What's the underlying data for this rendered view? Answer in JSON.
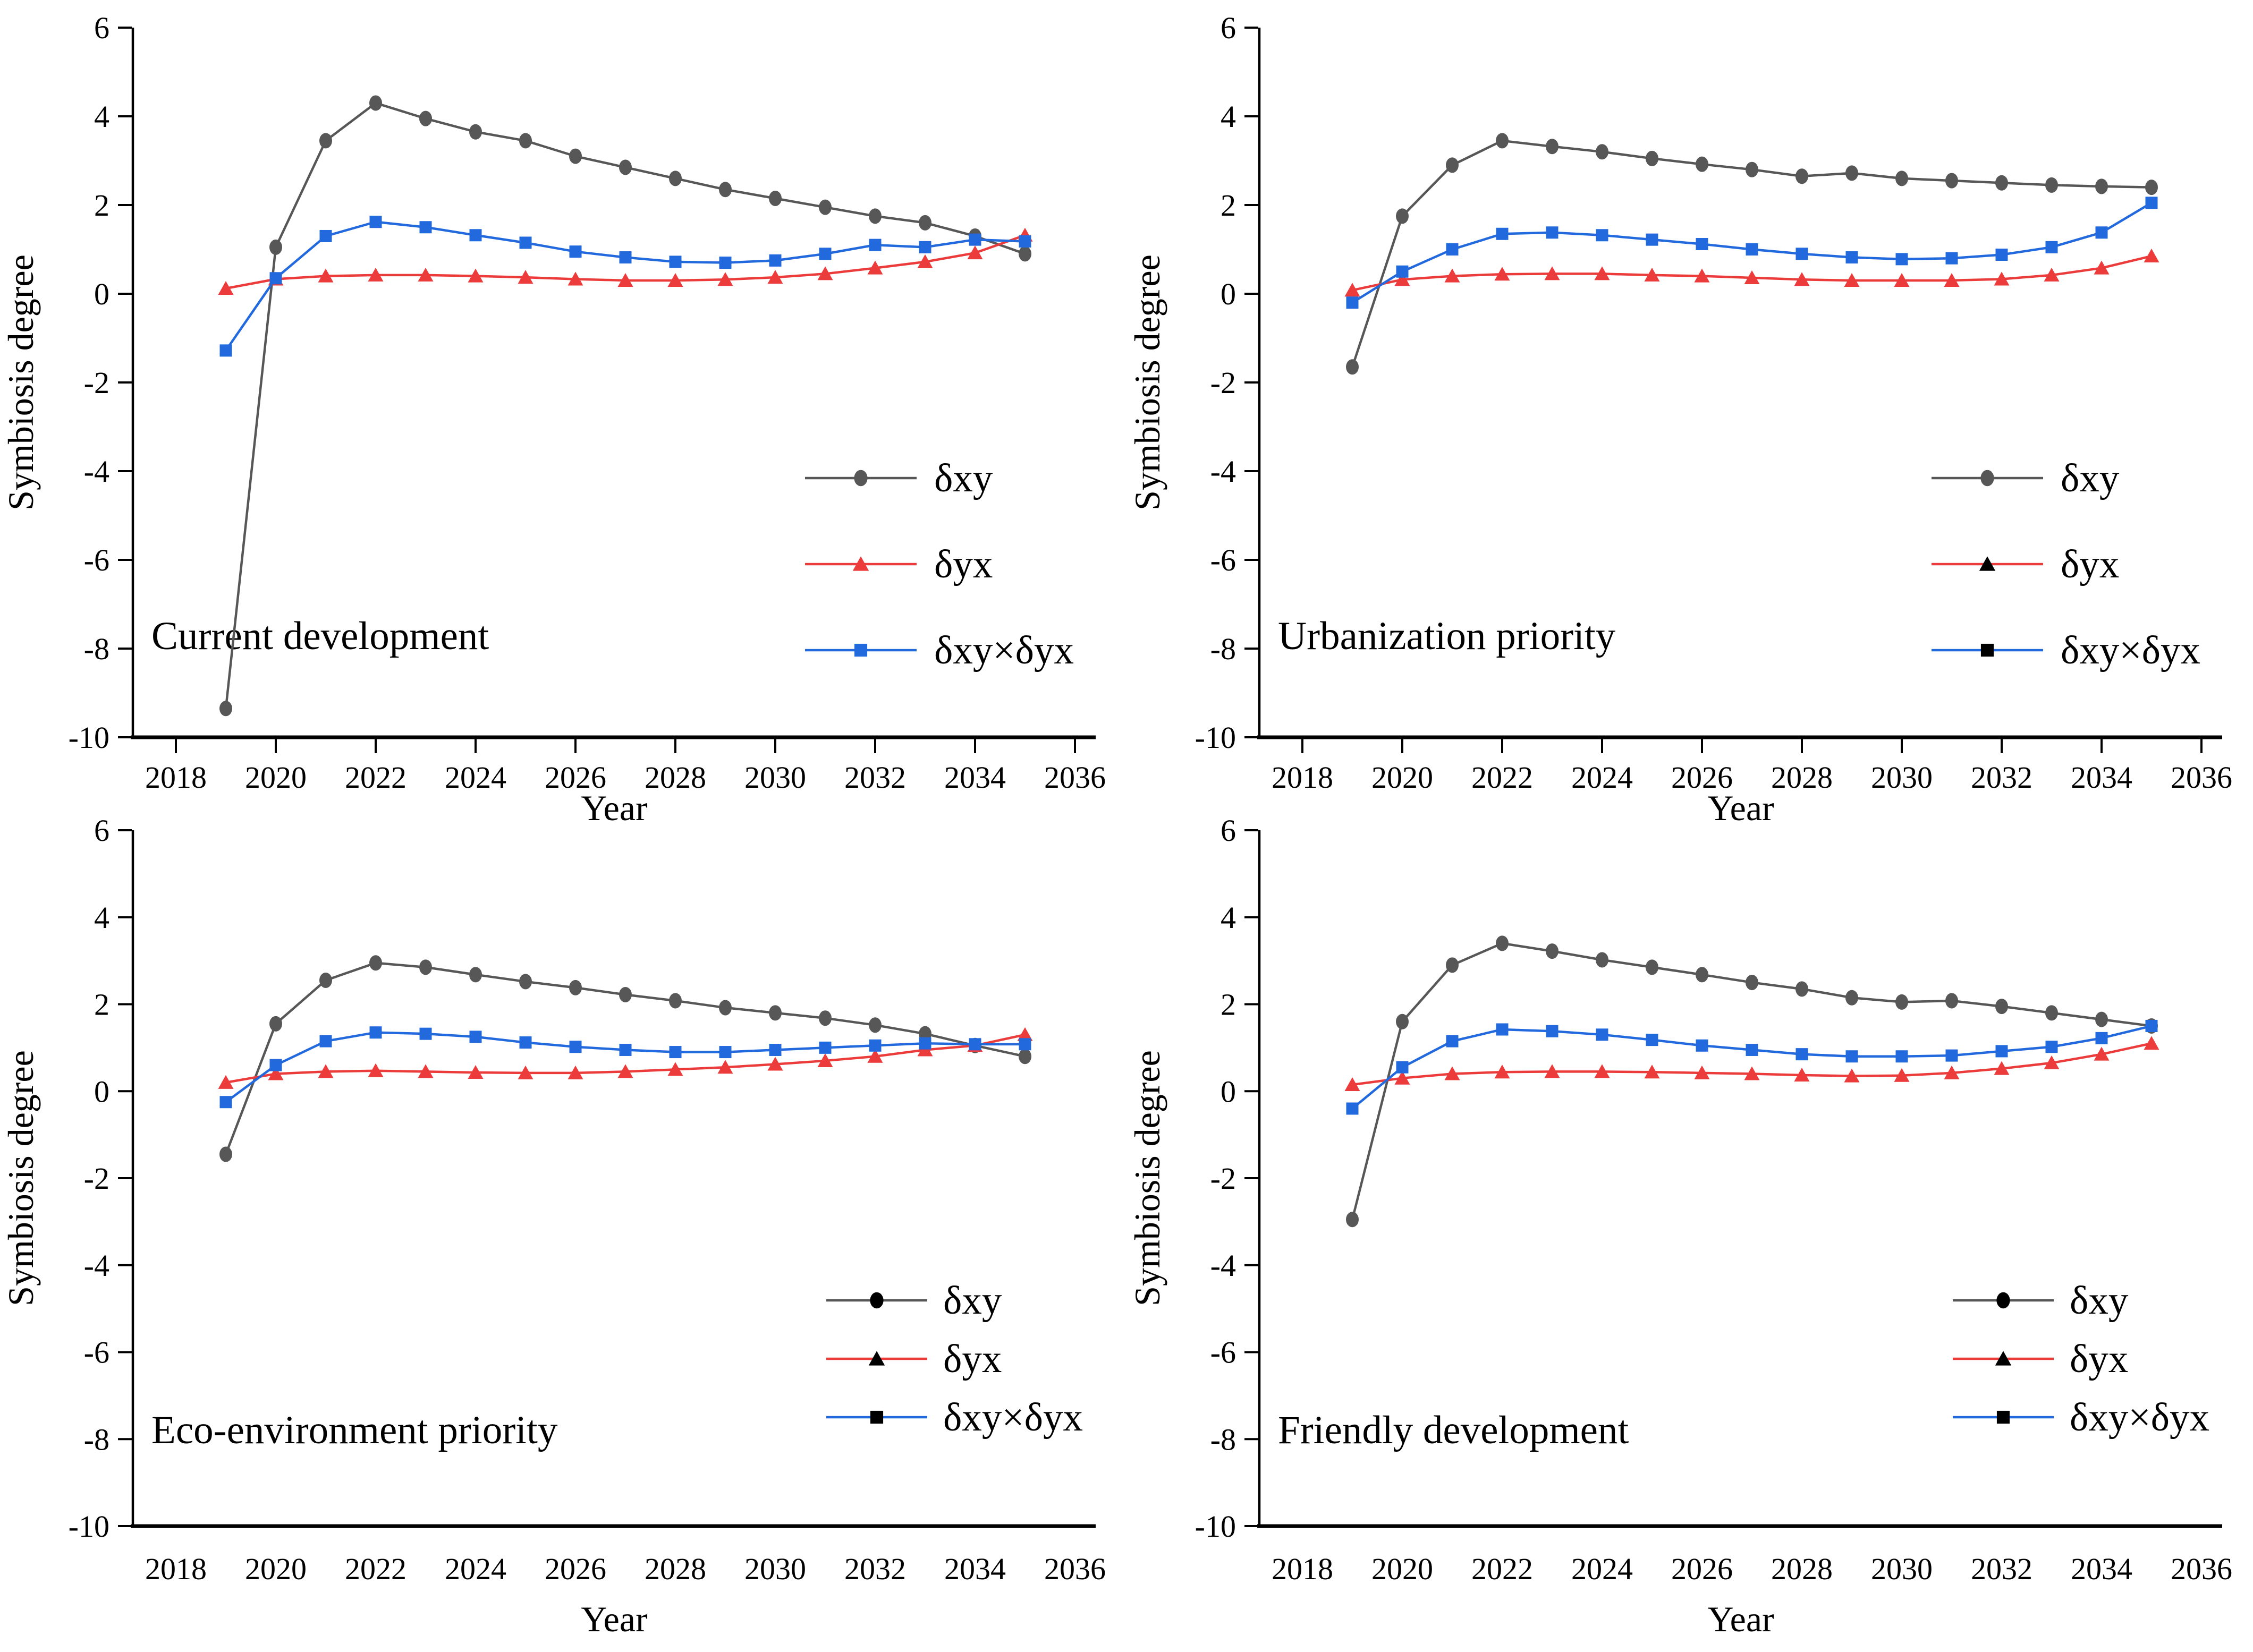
{
  "figure": {
    "background": "#ffffff",
    "x_axis_label": "Year",
    "y_axis_label": "Symbiosis degree"
  },
  "colors": {
    "gray": "#575757",
    "red": "#EC3B3B",
    "blue": "#2269DE",
    "black": "#000000",
    "axis": "#000000"
  },
  "chart_data": [
    {
      "slug": "current-development",
      "type": "line",
      "title": "Current development",
      "xlabel": "Year",
      "ylabel": "Symbiosis degree",
      "xlim": [
        2017.1,
        2036.4
      ],
      "ylim": [
        -10,
        6
      ],
      "grid": false,
      "legend_position": "inside-right-middle",
      "xticks": [
        2018,
        2020,
        2022,
        2024,
        2026,
        2028,
        2030,
        2032,
        2034,
        2036
      ],
      "yticks": [
        6,
        4,
        2,
        0,
        -2,
        -4,
        -6,
        -8,
        -10
      ],
      "x": [
        2019,
        2020,
        2021,
        2022,
        2023,
        2024,
        2025,
        2026,
        2027,
        2028,
        2029,
        2030,
        2031,
        2032,
        2033,
        2034,
        2035
      ],
      "series": [
        {
          "slug": "dxy",
          "name": "δxy",
          "marker": "circle",
          "line_color": "gray",
          "marker_color": "gray",
          "legend_marker_color": "gray",
          "values": [
            -9.35,
            1.05,
            3.45,
            4.3,
            3.95,
            3.65,
            3.45,
            3.1,
            2.85,
            2.6,
            2.35,
            2.15,
            1.95,
            1.75,
            1.6,
            1.3,
            0.9
          ]
        },
        {
          "slug": "dyx",
          "name": "δyx",
          "marker": "triangle",
          "line_color": "red",
          "marker_color": "red",
          "legend_marker_color": "red",
          "values": [
            0.12,
            0.33,
            0.4,
            0.42,
            0.42,
            0.4,
            0.37,
            0.33,
            0.3,
            0.3,
            0.32,
            0.37,
            0.45,
            0.58,
            0.72,
            0.92,
            1.32
          ]
        },
        {
          "slug": "dxydyx",
          "name": "δxy×δyx",
          "marker": "square",
          "line_color": "blue",
          "marker_color": "blue",
          "legend_marker_color": "blue",
          "values": [
            -1.28,
            0.35,
            1.3,
            1.62,
            1.5,
            1.32,
            1.15,
            0.95,
            0.82,
            0.72,
            0.7,
            0.75,
            0.9,
            1.1,
            1.05,
            1.22,
            1.18
          ]
        }
      ]
    },
    {
      "slug": "urbanization-priority",
      "type": "line",
      "title": "Urbanization priority",
      "xlabel": "Year",
      "ylabel": "Symbiosis degree",
      "xlim": [
        2017.1,
        2036.4
      ],
      "ylim": [
        -10,
        6
      ],
      "grid": false,
      "legend_position": "inside-right-middle",
      "xticks": [
        2018,
        2020,
        2022,
        2024,
        2026,
        2028,
        2030,
        2032,
        2034,
        2036
      ],
      "yticks": [
        6,
        4,
        2,
        0,
        -2,
        -4,
        -6,
        -8,
        -10
      ],
      "x": [
        2019,
        2020,
        2021,
        2022,
        2023,
        2024,
        2025,
        2026,
        2027,
        2028,
        2029,
        2030,
        2031,
        2032,
        2033,
        2034,
        2035
      ],
      "series": [
        {
          "slug": "dxy",
          "name": "δxy",
          "marker": "circle",
          "line_color": "gray",
          "marker_color": "gray",
          "legend_marker_color": "gray",
          "values": [
            -1.65,
            1.75,
            2.9,
            3.45,
            3.32,
            3.2,
            3.05,
            2.92,
            2.8,
            2.65,
            2.72,
            2.6,
            2.55,
            2.5,
            2.45,
            2.42,
            2.4
          ]
        },
        {
          "slug": "dyx",
          "name": "δyx",
          "marker": "triangle",
          "line_color": "red",
          "marker_color": "red",
          "legend_marker_color": "black",
          "values": [
            0.08,
            0.32,
            0.4,
            0.44,
            0.45,
            0.45,
            0.42,
            0.4,
            0.36,
            0.32,
            0.3,
            0.3,
            0.3,
            0.33,
            0.42,
            0.58,
            0.85
          ]
        },
        {
          "slug": "dxydyx",
          "name": "δxy×δyx",
          "marker": "square",
          "line_color": "blue",
          "marker_color": "blue",
          "legend_marker_color": "black",
          "values": [
            -0.2,
            0.5,
            1.0,
            1.35,
            1.38,
            1.32,
            1.22,
            1.12,
            1.0,
            0.9,
            0.82,
            0.78,
            0.8,
            0.88,
            1.05,
            1.38,
            2.05
          ]
        }
      ]
    },
    {
      "slug": "eco-environment-priority",
      "type": "line",
      "title": "Eco-environment priority",
      "xlabel": "Year",
      "ylabel": "Symbiosis degree",
      "xlim": [
        2017.1,
        2036.4
      ],
      "ylim": [
        -10,
        6
      ],
      "grid": false,
      "legend_position": "inside-right-middle",
      "xticks": [
        2018,
        2020,
        2022,
        2024,
        2026,
        2028,
        2030,
        2032,
        2034,
        2036
      ],
      "yticks": [
        6,
        4,
        2,
        0,
        -2,
        -4,
        -6,
        -8,
        -10
      ],
      "x": [
        2019,
        2020,
        2021,
        2022,
        2023,
        2024,
        2025,
        2026,
        2027,
        2028,
        2029,
        2030,
        2031,
        2032,
        2033,
        2034,
        2035
      ],
      "series": [
        {
          "slug": "dxy",
          "name": "δxy",
          "marker": "circle",
          "line_color": "gray",
          "marker_color": "gray",
          "legend_marker_color": "black",
          "values": [
            -1.45,
            1.55,
            2.55,
            2.95,
            2.85,
            2.68,
            2.52,
            2.38,
            2.22,
            2.08,
            1.92,
            1.8,
            1.68,
            1.52,
            1.32,
            1.05,
            0.8
          ]
        },
        {
          "slug": "dyx",
          "name": "δyx",
          "marker": "triangle",
          "line_color": "red",
          "marker_color": "red",
          "legend_marker_color": "black",
          "values": [
            0.2,
            0.4,
            0.45,
            0.47,
            0.45,
            0.43,
            0.42,
            0.42,
            0.45,
            0.5,
            0.55,
            0.62,
            0.7,
            0.8,
            0.95,
            1.05,
            1.3
          ]
        },
        {
          "slug": "dxydyx",
          "name": "δxy×δyx",
          "marker": "square",
          "line_color": "blue",
          "marker_color": "blue",
          "legend_marker_color": "black",
          "values": [
            -0.25,
            0.6,
            1.15,
            1.35,
            1.32,
            1.25,
            1.12,
            1.02,
            0.95,
            0.9,
            0.9,
            0.95,
            1.0,
            1.05,
            1.1,
            1.08,
            1.08
          ]
        }
      ]
    },
    {
      "slug": "friendly-development",
      "type": "line",
      "title": "Friendly development",
      "xlabel": "Year",
      "ylabel": "Symbiosis degree",
      "xlim": [
        2017.1,
        2036.4
      ],
      "ylim": [
        -10,
        6
      ],
      "grid": false,
      "legend_position": "inside-right-middle",
      "xticks": [
        2018,
        2020,
        2022,
        2024,
        2026,
        2028,
        2030,
        2032,
        2034,
        2036
      ],
      "yticks": [
        6,
        4,
        2,
        0,
        -2,
        -4,
        -6,
        -8,
        -10
      ],
      "x": [
        2019,
        2020,
        2021,
        2022,
        2023,
        2024,
        2025,
        2026,
        2027,
        2028,
        2029,
        2030,
        2031,
        2032,
        2033,
        2034,
        2035
      ],
      "series": [
        {
          "slug": "dxy",
          "name": "δxy",
          "marker": "circle",
          "line_color": "gray",
          "marker_color": "gray",
          "legend_marker_color": "black",
          "values": [
            -2.95,
            1.6,
            2.9,
            3.4,
            3.22,
            3.02,
            2.85,
            2.68,
            2.5,
            2.35,
            2.15,
            2.05,
            2.08,
            1.95,
            1.8,
            1.65,
            1.5
          ]
        },
        {
          "slug": "dyx",
          "name": "δyx",
          "marker": "triangle",
          "line_color": "red",
          "marker_color": "red",
          "legend_marker_color": "black",
          "values": [
            0.15,
            0.3,
            0.4,
            0.44,
            0.45,
            0.45,
            0.44,
            0.42,
            0.4,
            0.37,
            0.35,
            0.36,
            0.42,
            0.52,
            0.65,
            0.85,
            1.1
          ]
        },
        {
          "slug": "dxydyx",
          "name": "δxy×δyx",
          "marker": "square",
          "line_color": "blue",
          "marker_color": "blue",
          "legend_marker_color": "black",
          "values": [
            -0.4,
            0.55,
            1.15,
            1.42,
            1.38,
            1.3,
            1.18,
            1.05,
            0.95,
            0.85,
            0.8,
            0.8,
            0.82,
            0.92,
            1.02,
            1.22,
            1.5
          ]
        }
      ]
    }
  ]
}
